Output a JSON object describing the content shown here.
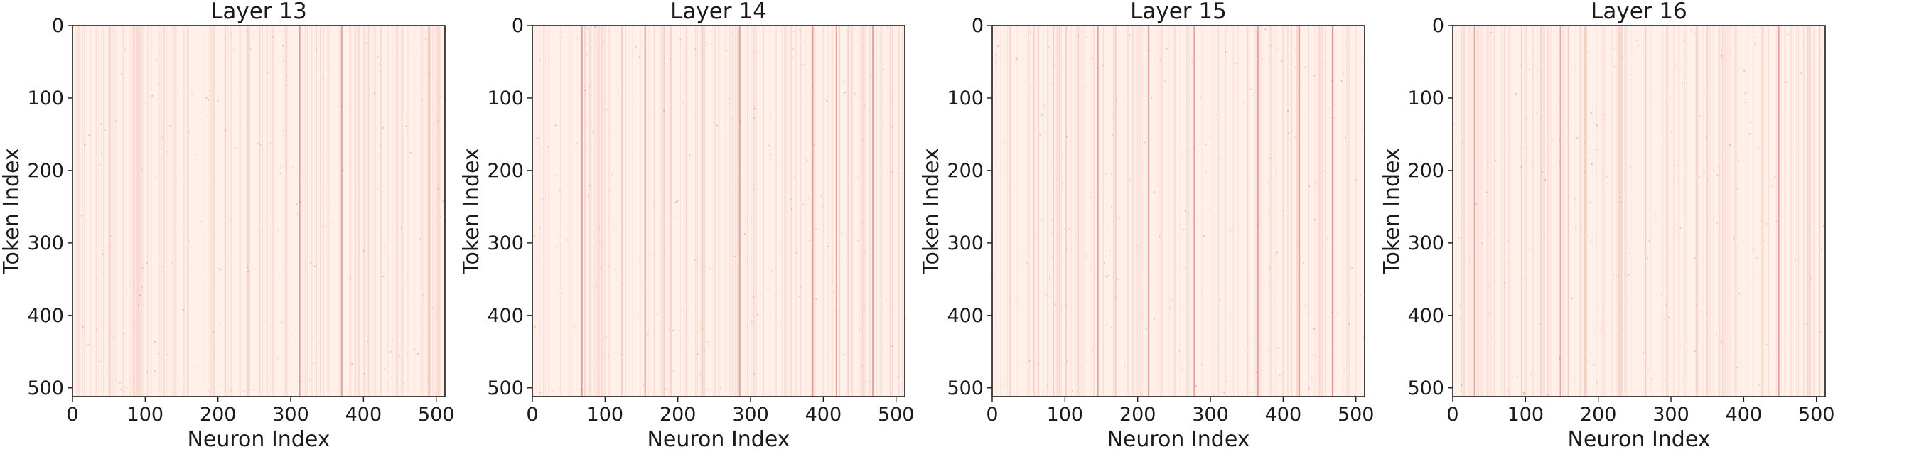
{
  "chart_data": [
    {
      "type": "heatmap",
      "title": "Layer 13",
      "xlabel": "Neuron Index",
      "ylabel": "Token Index",
      "xlim": [
        0,
        512
      ],
      "ylim": [
        512,
        0
      ],
      "xticks": [
        0,
        100,
        200,
        300,
        400,
        500
      ],
      "yticks": [
        0,
        100,
        200,
        300,
        400,
        500
      ],
      "colormap": "Reds",
      "grid": false,
      "prominent_neuron_columns": [
        312,
        370
      ]
    },
    {
      "type": "heatmap",
      "title": "Layer 14",
      "xlabel": "Neuron Index",
      "ylabel": "Token Index",
      "xlim": [
        0,
        512
      ],
      "ylim": [
        512,
        0
      ],
      "xticks": [
        0,
        100,
        200,
        300,
        400,
        500
      ],
      "yticks": [
        0,
        100,
        200,
        300,
        400,
        500
      ],
      "colormap": "Reds",
      "grid": false,
      "prominent_neuron_columns": [
        68,
        155,
        285,
        385,
        418,
        468
      ]
    },
    {
      "type": "heatmap",
      "title": "Layer 15",
      "xlabel": "Neuron Index",
      "ylabel": "Token Index",
      "xlim": [
        0,
        512
      ],
      "ylim": [
        512,
        0
      ],
      "xticks": [
        0,
        100,
        200,
        300,
        400,
        500
      ],
      "yticks": [
        0,
        100,
        200,
        300,
        400,
        500
      ],
      "colormap": "Reds",
      "grid": false,
      "prominent_neuron_columns": [
        145,
        215,
        278,
        365,
        422,
        468
      ]
    },
    {
      "type": "heatmap",
      "title": "Layer 16",
      "xlabel": "Neuron Index",
      "ylabel": "Token Index",
      "xlim": [
        0,
        512
      ],
      "ylim": [
        512,
        0
      ],
      "xticks": [
        0,
        100,
        200,
        300,
        400,
        500
      ],
      "yticks": [
        0,
        100,
        200,
        300,
        400,
        500
      ],
      "colormap": "Reds",
      "grid": false,
      "prominent_neuron_columns": [
        30,
        148,
        448
      ]
    }
  ]
}
